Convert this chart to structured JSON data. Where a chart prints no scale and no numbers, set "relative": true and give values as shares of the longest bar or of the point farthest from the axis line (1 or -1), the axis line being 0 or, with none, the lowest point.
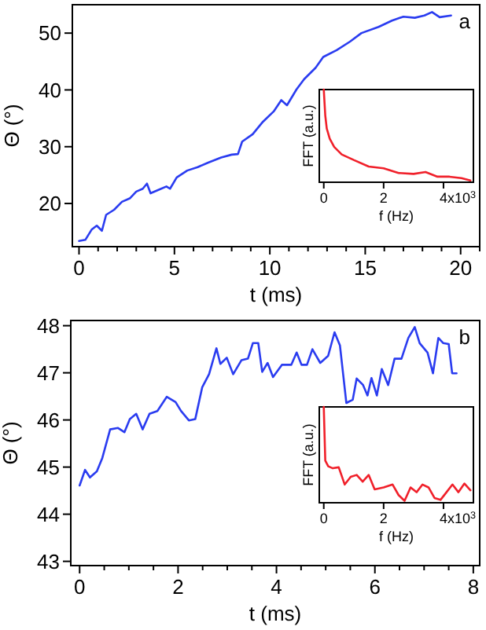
{
  "chart_data": [
    {
      "type": "line",
      "xlabel": "t (ms)",
      "ylabel": "Θ (°)",
      "annotations": [
        "a"
      ],
      "xlim": [
        -0.35,
        21
      ],
      "ylim": [
        12.4,
        55
      ],
      "yticks": [
        20,
        30,
        40,
        50
      ],
      "xticks": [
        0,
        {
          "value": 1,
          "label": null
        },
        {
          "value": 2,
          "label": null
        },
        {
          "value": 3,
          "label": null
        },
        {
          "value": 4,
          "label": null
        },
        5,
        {
          "value": 6,
          "label": null
        },
        {
          "value": 7,
          "label": null
        },
        {
          "value": 8,
          "label": null
        },
        {
          "value": 9,
          "label": null
        },
        10,
        {
          "value": 11,
          "label": null
        },
        {
          "value": 12,
          "label": null
        },
        {
          "value": 13,
          "label": null
        },
        {
          "value": 14,
          "label": null
        },
        15,
        {
          "value": 16,
          "label": null
        },
        {
          "value": 17,
          "label": null
        },
        {
          "value": 18,
          "label": null
        },
        {
          "value": 19,
          "label": null
        },
        20,
        {
          "value": 21,
          "label": null
        }
      ],
      "series": [
        {
          "color": "#2a3cf0",
          "x": [
            0,
            0.33,
            0.66,
            0.93,
            1.2,
            1.42,
            1.84,
            2.25,
            2.66,
            3.0,
            3.34,
            3.56,
            3.75,
            4.16,
            4.58,
            4.77,
            5.12,
            5.67,
            6.22,
            6.77,
            7.45,
            8.0,
            8.33,
            8.55,
            9.1,
            9.64,
            10.2,
            10.6,
            10.9,
            11.4,
            11.8,
            12.4,
            12.8,
            13.5,
            14.2,
            14.8,
            15.7,
            16.4,
            17.0,
            17.6,
            18.1,
            18.5,
            18.9,
            19.5
          ],
          "values": [
            13.4,
            13.6,
            15.4,
            16.1,
            15.2,
            18,
            18.9,
            20.3,
            20.9,
            22.1,
            22.6,
            23.5,
            21.8,
            22.4,
            23,
            22.6,
            24.6,
            25.8,
            26.4,
            27.2,
            28.1,
            28.6,
            28.7,
            30.9,
            32.2,
            34.4,
            36.2,
            38.2,
            37.3,
            40.1,
            41.9,
            43.9,
            45.8,
            47,
            48.5,
            50,
            51.1,
            52.2,
            52.9,
            52.7,
            53.1,
            53.7,
            52.8,
            53.1
          ]
        }
      ]
    },
    {
      "type": "line",
      "relative": true,
      "xlabel": "f (Hz)",
      "ylabel": "FFT (a.u.)",
      "annotations": [
        "x10$^{3}$"
      ],
      "xlim": [
        -0.15,
        5.0
      ],
      "xticks": [
        0,
        2,
        4
      ],
      "series": [
        {
          "color": "#f0202a",
          "x": [
            0,
            0.05,
            0.1,
            0.2,
            0.35,
            0.6,
            1.0,
            1.5,
            2.0,
            2.5,
            3.0,
            3.4,
            3.8,
            4.2,
            4.6,
            4.9
          ],
          "values": [
            1,
            0.72,
            0.58,
            0.47,
            0.38,
            0.3,
            0.24,
            0.17,
            0.15,
            0.1,
            0.09,
            0.11,
            0.06,
            0.06,
            0.045,
            0.02
          ]
        }
      ]
    },
    {
      "type": "line",
      "xlabel": "t (ms)",
      "ylabel": "Θ (°)",
      "annotations": [
        "b"
      ],
      "xlim": [
        -0.18,
        8.13
      ],
      "ylim": [
        42.91,
        48.11
      ],
      "yticks": [
        43,
        44,
        45,
        46,
        47,
        48
      ],
      "xticks": [
        0,
        {
          "value": 0.5,
          "label": null
        },
        {
          "value": 1,
          "label": null
        },
        {
          "value": 1.5,
          "label": null
        },
        2,
        {
          "value": 2.5,
          "label": null
        },
        {
          "value": 3,
          "label": null
        },
        {
          "value": 3.5,
          "label": null
        },
        4,
        {
          "value": 4.5,
          "label": null
        },
        {
          "value": 5,
          "label": null
        },
        {
          "value": 5.5,
          "label": null
        },
        6,
        {
          "value": 6.5,
          "label": null
        },
        {
          "value": 7,
          "label": null
        },
        {
          "value": 7.5,
          "label": null
        },
        8
      ],
      "series": [
        {
          "color": "#2a3cf0",
          "x": [
            0,
            0.11,
            0.21,
            0.35,
            0.46,
            0.62,
            0.78,
            0.91,
            1.02,
            1.15,
            1.28,
            1.42,
            1.58,
            1.77,
            1.95,
            2.06,
            2.22,
            2.35,
            2.49,
            2.63,
            2.78,
            2.86,
            2.99,
            3.12,
            3.29,
            3.42,
            3.52,
            3.63,
            3.71,
            3.82,
            3.93,
            4.11,
            4.3,
            4.41,
            4.51,
            4.62,
            4.73,
            4.89,
            5.05,
            5.18,
            5.29,
            5.42,
            5.55,
            5.63,
            5.76,
            5.85,
            5.93,
            6.04,
            6.14,
            6.27,
            6.4,
            6.54,
            6.68,
            6.81,
            6.91,
            7.07,
            7.18,
            7.29,
            7.39,
            7.5,
            7.57,
            7.66
          ],
          "values": [
            44.61,
            44.94,
            44.78,
            44.91,
            45.19,
            45.8,
            45.83,
            45.74,
            46.02,
            46.13,
            45.8,
            46.13,
            46.19,
            46.49,
            46.38,
            46.19,
            45.99,
            46.02,
            46.69,
            46.97,
            47.52,
            47.19,
            47.32,
            46.97,
            47.27,
            47.3,
            47.63,
            47.63,
            47.02,
            47.21,
            46.91,
            47.17,
            47.17,
            47.43,
            47.17,
            47.17,
            47.5,
            47.21,
            47.36,
            47.86,
            47.58,
            46.36,
            46.43,
            46.88,
            46.74,
            46.52,
            46.89,
            46.52,
            47.08,
            46.74,
            47.3,
            47.3,
            47.74,
            47.97,
            47.63,
            47.43,
            46.99,
            47.74,
            47.63,
            47.61,
            46.99,
            46.99
          ]
        }
      ]
    },
    {
      "type": "line",
      "relative": true,
      "xlabel": "f (Hz)",
      "ylabel": "FFT (a.u.)",
      "annotations": [
        "x10$^{3}$"
      ],
      "xlim": [
        -0.15,
        5.0
      ],
      "xticks": [
        0,
        2,
        4
      ],
      "series": [
        {
          "color": "#f0202a",
          "x": [
            0,
            0.05,
            0.15,
            0.3,
            0.5,
            0.7,
            0.9,
            1.1,
            1.3,
            1.5,
            1.7,
            2.0,
            2.3,
            2.5,
            2.7,
            2.9,
            3.1,
            3.3,
            3.5,
            3.7,
            3.9,
            4.1,
            4.3,
            4.5,
            4.7,
            4.9
          ],
          "values": [
            1,
            0.44,
            0.38,
            0.36,
            0.37,
            0.19,
            0.27,
            0.29,
            0.22,
            0.29,
            0.14,
            0.16,
            0.19,
            0.08,
            0.02,
            0.16,
            0.11,
            0.19,
            0.16,
            0.05,
            0.03,
            0.11,
            0.19,
            0.11,
            0.2,
            0.13
          ]
        }
      ]
    }
  ]
}
